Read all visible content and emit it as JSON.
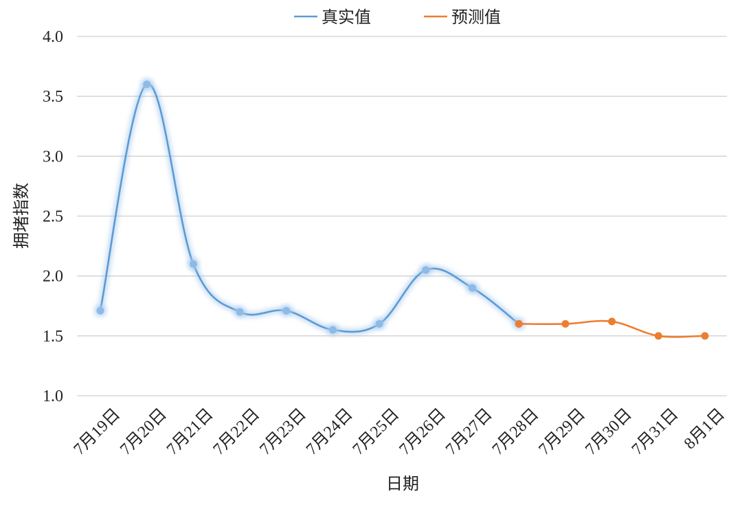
{
  "chart_data": {
    "type": "line",
    "title": "",
    "xlabel": "日期",
    "ylabel": "拥堵指数",
    "ylim": [
      1.0,
      4.0
    ],
    "yticks": [
      1.0,
      1.5,
      2.0,
      2.5,
      3.0,
      3.5,
      4.0
    ],
    "ytick_labels": [
      "1.0",
      "1.5",
      "2.0",
      "2.5",
      "3.0",
      "3.5",
      "4.0"
    ],
    "categories": [
      "7月19日",
      "7月20日",
      "7月21日",
      "7月22日",
      "7月23日",
      "7月24日",
      "7月25日",
      "7月26日",
      "7月27日",
      "7月28日",
      "7月29日",
      "7月30日",
      "7月31日",
      "8月1日"
    ],
    "grid": "horizontal",
    "legend_position": "top-center",
    "series": [
      {
        "name": "真实值",
        "color": "#5b9bd5",
        "smooth": true,
        "values": [
          1.71,
          3.6,
          2.1,
          1.7,
          1.71,
          1.55,
          1.6,
          2.05,
          1.9,
          1.6,
          null,
          null,
          null,
          null
        ]
      },
      {
        "name": "预测值",
        "color": "#ed7d31",
        "smooth": true,
        "values": [
          null,
          null,
          null,
          null,
          null,
          null,
          null,
          null,
          null,
          1.6,
          1.6,
          1.62,
          1.5,
          1.5
        ]
      }
    ]
  }
}
